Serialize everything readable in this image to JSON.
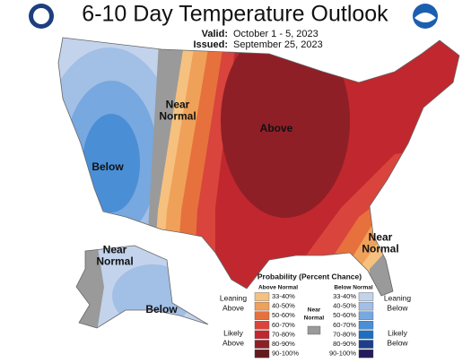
{
  "header": {
    "title": "6-10 Day Temperature Outlook",
    "valid_label": "Valid:",
    "valid_dates": "October 1 - 5, 2023",
    "issued_label": "Issued:",
    "issued_dates": "September 25, 2023"
  },
  "map_labels": [
    {
      "lines": [
        "Near",
        "Normal"
      ]
    },
    {
      "lines": [
        "Above"
      ]
    },
    {
      "lines": [
        "Below"
      ]
    },
    {
      "lines": [
        "Near",
        "Normal"
      ]
    },
    {
      "lines": [
        "Near",
        "Normal"
      ]
    },
    {
      "lines": [
        "Below"
      ]
    }
  ],
  "legend": {
    "title": "Probability (Percent Chance)",
    "above_heading": "Above Normal",
    "below_heading": "Below Normal",
    "above_bins": [
      {
        "range": "33-40%",
        "color": "#f6c17f"
      },
      {
        "range": "40-50%",
        "color": "#f0a159"
      },
      {
        "range": "50-60%",
        "color": "#e6713d"
      },
      {
        "range": "60-70%",
        "color": "#d9443c"
      },
      {
        "range": "70-80%",
        "color": "#c1272e"
      },
      {
        "range": "80-90%",
        "color": "#8e1f26"
      },
      {
        "range": "90-100%",
        "color": "#651a1e"
      }
    ],
    "below_bins": [
      {
        "range": "33-40%",
        "color": "#c3d3ec"
      },
      {
        "range": "40-50%",
        "color": "#a2bfe6"
      },
      {
        "range": "50-60%",
        "color": "#77a8df"
      },
      {
        "range": "60-70%",
        "color": "#4a8ed6"
      },
      {
        "range": "70-80%",
        "color": "#1e6fc1"
      },
      {
        "range": "80-90%",
        "color": "#1b3f8c"
      },
      {
        "range": "90-100%",
        "color": "#251c5c"
      }
    ],
    "near_normal": {
      "lines": [
        "Near",
        "Normal"
      ],
      "color": "#9a9a9a"
    },
    "leaning_above": [
      "Leaning",
      "Above"
    ],
    "likely_above": [
      "Likely",
      "Above"
    ],
    "leaning_below": [
      "Leaning",
      "Below"
    ],
    "likely_below": [
      "Likely",
      "Below"
    ]
  }
}
